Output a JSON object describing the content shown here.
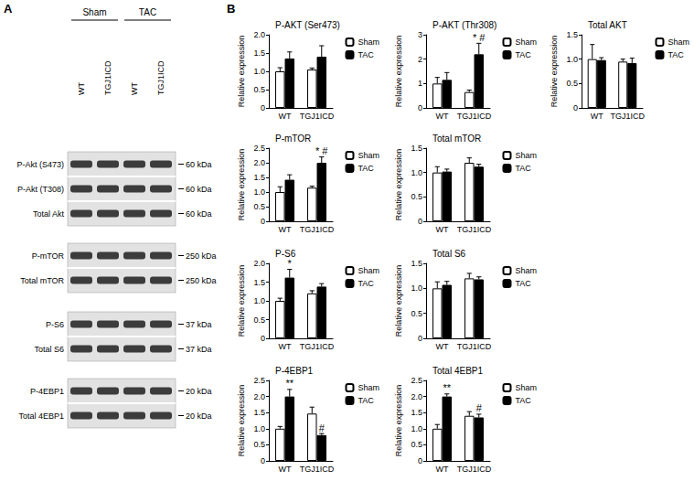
{
  "panel_labels": [
    "A",
    "B"
  ],
  "blot": {
    "groups": [
      {
        "label": "Sham",
        "lanes": [
          "WT",
          "TGJ1ICD"
        ]
      },
      {
        "label": "TAC",
        "lanes": [
          "WT",
          "TGJ1ICD"
        ]
      }
    ],
    "blocks": [
      [
        {
          "label": "P-Akt (S473)",
          "size": "60 kDa"
        },
        {
          "label": "P-Akt (T308)",
          "size": "60 kDa"
        },
        {
          "label": "Total Akt",
          "size": "60 kDa"
        }
      ],
      [
        {
          "label": "P-mTOR",
          "size": "250 kDa"
        },
        {
          "label": "Total mTOR",
          "size": "250 kDa"
        }
      ],
      [
        {
          "label": "P-S6",
          "size": "37 kDa"
        },
        {
          "label": "Total S6",
          "size": "37 kDa"
        }
      ],
      [
        {
          "label": "P-4EBP1",
          "size": "20 kDa"
        },
        {
          "label": "Total 4EBP1",
          "size": "20 kDa"
        }
      ]
    ]
  },
  "chart_data": [
    {
      "type": "bar",
      "title": "P-AKT (Ser473)",
      "y_label": "Relative expression",
      "categories": [
        "WT",
        "TGJ1ICD"
      ],
      "series": [
        {
          "name": "Sham",
          "color": "#ffffff",
          "values": [
            1.0,
            1.05
          ],
          "errors": [
            0.1,
            0.04
          ],
          "annotations": [
            null,
            null
          ]
        },
        {
          "name": "TAC",
          "color": "#000000",
          "values": [
            1.35,
            1.4
          ],
          "errors": [
            0.18,
            0.3
          ],
          "annotations": [
            null,
            null
          ]
        }
      ],
      "ylim": [
        0,
        2
      ],
      "yticks": [
        0,
        0.5,
        {
          "value": 1,
          "label": "1.0"
        },
        1.5,
        {
          "value": 2,
          "label": "2.0"
        }
      ],
      "legend": "right"
    },
    {
      "type": "bar",
      "title": "P-AKT (Thr308)",
      "y_label": "Relative expression",
      "categories": [
        "WT",
        "TGJ1ICD"
      ],
      "series": [
        {
          "name": "Sham",
          "color": "#ffffff",
          "values": [
            1.0,
            0.65
          ],
          "errors": [
            0.25,
            0.08
          ],
          "annotations": [
            null,
            null
          ]
        },
        {
          "name": "TAC",
          "color": "#000000",
          "values": [
            1.15,
            2.2
          ],
          "errors": [
            0.3,
            0.45
          ],
          "annotations": [
            null,
            "* #"
          ]
        }
      ],
      "ylim": [
        0,
        3
      ],
      "yticks": [
        0,
        1,
        2,
        3
      ],
      "legend": "right"
    },
    {
      "type": "bar",
      "title": "Total AKT",
      "y_label": "Relative expression",
      "categories": [
        "WT",
        "TGJ1ICD"
      ],
      "series": [
        {
          "name": "Sham",
          "color": "#ffffff",
          "values": [
            1.0,
            0.95
          ],
          "errors": [
            0.3,
            0.05
          ],
          "annotations": [
            null,
            null
          ]
        },
        {
          "name": "TAC",
          "color": "#000000",
          "values": [
            0.98,
            0.92
          ],
          "errors": [
            0.05,
            0.1
          ],
          "annotations": [
            null,
            null
          ]
        }
      ],
      "ylim": [
        0,
        1.5
      ],
      "yticks": [
        0,
        0.5,
        {
          "value": 1,
          "label": "1.0"
        },
        1.5
      ],
      "legend": "right"
    },
    {
      "type": "bar",
      "title": "P-mTOR",
      "y_label": "Relative expression",
      "categories": [
        "WT",
        "TGJ1ICD"
      ],
      "series": [
        {
          "name": "Sham",
          "color": "#ffffff",
          "values": [
            1.0,
            1.15
          ],
          "errors": [
            0.18,
            0.05
          ],
          "annotations": [
            null,
            null
          ]
        },
        {
          "name": "TAC",
          "color": "#000000",
          "values": [
            1.42,
            2.0
          ],
          "errors": [
            0.17,
            0.2
          ],
          "annotations": [
            null,
            "* #"
          ]
        }
      ],
      "ylim": [
        0,
        2.5
      ],
      "yticks": [
        0,
        0.5,
        {
          "value": 1,
          "label": "1.0"
        },
        1.5,
        {
          "value": 2,
          "label": "2.0"
        },
        2.5
      ],
      "legend": "right"
    },
    {
      "type": "bar",
      "title": "Total mTOR",
      "y_label": "Relative expression",
      "categories": [
        "WT",
        "TGJ1ICD"
      ],
      "series": [
        {
          "name": "Sham",
          "color": "#ffffff",
          "values": [
            1.0,
            1.2
          ],
          "errors": [
            0.12,
            0.1
          ],
          "annotations": [
            null,
            null
          ]
        },
        {
          "name": "TAC",
          "color": "#000000",
          "values": [
            1.02,
            1.12
          ],
          "errors": [
            0.05,
            0.05
          ],
          "annotations": [
            null,
            null
          ]
        }
      ],
      "ylim": [
        0,
        1.5
      ],
      "yticks": [
        0,
        0.5,
        {
          "value": 1,
          "label": "1.0"
        },
        1.5
      ],
      "legend": "right"
    },
    {
      "type": "bar",
      "title": "P-S6",
      "y_label": "Relative expression",
      "categories": [
        "WT",
        "TGJ1ICD"
      ],
      "series": [
        {
          "name": "Sham",
          "color": "#ffffff",
          "values": [
            1.0,
            1.2
          ],
          "errors": [
            0.07,
            0.07
          ],
          "annotations": [
            null,
            null
          ]
        },
        {
          "name": "TAC",
          "color": "#000000",
          "values": [
            1.62,
            1.38
          ],
          "errors": [
            0.22,
            0.08
          ],
          "annotations": [
            "*",
            null
          ]
        }
      ],
      "ylim": [
        0,
        2
      ],
      "yticks": [
        0,
        0.5,
        {
          "value": 1,
          "label": "1.0"
        },
        1.5,
        {
          "value": 2,
          "label": "2.0"
        }
      ],
      "legend": "right"
    },
    {
      "type": "bar",
      "title": "Total S6",
      "y_label": "Relative expression",
      "categories": [
        "WT",
        "TGJ1ICD"
      ],
      "series": [
        {
          "name": "Sham",
          "color": "#ffffff",
          "values": [
            1.0,
            1.2
          ],
          "errors": [
            0.13,
            0.1
          ],
          "annotations": [
            null,
            null
          ]
        },
        {
          "name": "TAC",
          "color": "#000000",
          "values": [
            1.07,
            1.18
          ],
          "errors": [
            0.07,
            0.05
          ],
          "annotations": [
            null,
            null
          ]
        }
      ],
      "ylim": [
        0,
        1.5
      ],
      "yticks": [
        0,
        0.5,
        {
          "value": 1,
          "label": "1.0"
        },
        1.5
      ],
      "legend": "right"
    },
    {
      "type": "bar",
      "title": "P-4EBP1",
      "y_label": "Relative expression",
      "categories": [
        "WT",
        "TGJ1ICD"
      ],
      "series": [
        {
          "name": "Sham",
          "color": "#ffffff",
          "values": [
            1.0,
            1.47
          ],
          "errors": [
            0.07,
            0.2
          ],
          "annotations": [
            null,
            null
          ]
        },
        {
          "name": "TAC",
          "color": "#000000",
          "values": [
            2.0,
            0.8
          ],
          "errors": [
            0.22,
            0.05
          ],
          "annotations": [
            "**",
            "#"
          ]
        }
      ],
      "ylim": [
        0,
        2.5
      ],
      "yticks": [
        0,
        0.5,
        {
          "value": 1,
          "label": "1.0"
        },
        1.5,
        {
          "value": 2,
          "label": "2.0"
        },
        2.5
      ],
      "legend": "right"
    },
    {
      "type": "bar",
      "title": "Total 4EBP1",
      "y_label": "Relative expression",
      "categories": [
        "WT",
        "TGJ1ICD"
      ],
      "series": [
        {
          "name": "Sham",
          "color": "#ffffff",
          "values": [
            1.0,
            1.4
          ],
          "errors": [
            0.13,
            0.13
          ],
          "annotations": [
            null,
            null
          ]
        },
        {
          "name": "TAC",
          "color": "#000000",
          "values": [
            2.0,
            1.35
          ],
          "errors": [
            0.08,
            0.1
          ],
          "annotations": [
            "**",
            "#"
          ]
        }
      ],
      "ylim": [
        0,
        2.5
      ],
      "yticks": [
        0,
        0.5,
        {
          "value": 1,
          "label": "1.0"
        },
        1.5,
        {
          "value": 2,
          "label": "2.0"
        },
        2.5
      ],
      "legend": "right"
    }
  ]
}
